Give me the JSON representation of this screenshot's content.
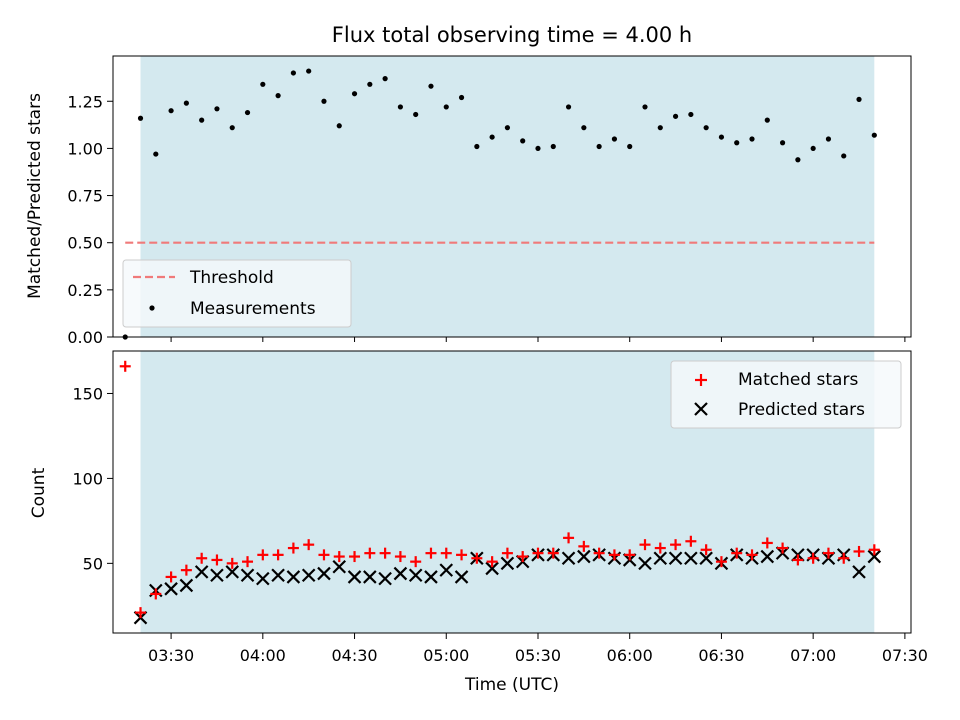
{
  "figure": {
    "title": "Flux total observing time = 4.00 h",
    "xlabel": "Time (UTC)",
    "x_tick_labels": [
      "03:30",
      "04:00",
      "04:30",
      "05:00",
      "05:30",
      "06:00",
      "06:30",
      "07:00",
      "07:30"
    ]
  },
  "colors": {
    "band": "#d4e9ef",
    "band_edge": "#b6dbe3",
    "threshold": "#f07a7a",
    "measurements": "#000000",
    "matched": "#ff0000",
    "predicted": "#000000"
  },
  "chart_data": [
    {
      "type": "scatter",
      "panel": "top",
      "ylabel": "Matched/Predicted stars",
      "xlim": [
        "03:11",
        "07:32"
      ],
      "ylim": [
        0,
        1.49
      ],
      "y_ticks": [
        0.0,
        0.25,
        0.5,
        0.75,
        1.0,
        1.25
      ],
      "y_tick_labels": [
        "0.00",
        "0.25",
        "0.50",
        "0.75",
        "1.00",
        "1.25"
      ],
      "shaded_range": [
        "03:20",
        "07:20"
      ],
      "threshold": {
        "value": 0.5,
        "x_range": [
          "03:15",
          "07:20"
        ]
      },
      "legend": {
        "position": "lower-left",
        "entries": [
          "Threshold",
          "Measurements"
        ]
      },
      "series": [
        {
          "name": "Measurements",
          "x": [
            "03:15",
            "03:20",
            "03:25",
            "03:30",
            "03:35",
            "03:40",
            "03:45",
            "03:50",
            "03:55",
            "04:00",
            "04:05",
            "04:10",
            "04:15",
            "04:20",
            "04:25",
            "04:30",
            "04:35",
            "04:40",
            "04:45",
            "04:50",
            "04:55",
            "05:00",
            "05:05",
            "05:10",
            "05:15",
            "05:20",
            "05:25",
            "05:30",
            "05:35",
            "05:40",
            "05:45",
            "05:50",
            "05:55",
            "06:00",
            "06:05",
            "06:10",
            "06:15",
            "06:20",
            "06:25",
            "06:30",
            "06:35",
            "06:40",
            "06:45",
            "06:50",
            "06:55",
            "07:00",
            "07:05",
            "07:10",
            "07:15",
            "07:20"
          ],
          "values": [
            0.0,
            1.16,
            0.97,
            1.2,
            1.24,
            1.15,
            1.21,
            1.11,
            1.19,
            1.34,
            1.28,
            1.4,
            1.41,
            1.25,
            1.12,
            1.29,
            1.34,
            1.37,
            1.22,
            1.18,
            1.33,
            1.22,
            1.27,
            1.01,
            1.06,
            1.11,
            1.04,
            1.0,
            1.01,
            1.22,
            1.11,
            1.01,
            1.05,
            1.01,
            1.22,
            1.11,
            1.17,
            1.18,
            1.11,
            1.06,
            1.03,
            1.05,
            1.15,
            1.03,
            0.94,
            1.0,
            1.05,
            0.96,
            1.26,
            1.07
          ]
        }
      ]
    },
    {
      "type": "scatter",
      "panel": "bottom",
      "ylabel": "Count",
      "xlim": [
        "03:11",
        "07:32"
      ],
      "ylim": [
        9,
        175
      ],
      "y_ticks": [
        50,
        100,
        150
      ],
      "y_tick_labels": [
        "50",
        "100",
        "150"
      ],
      "shaded_range": [
        "03:20",
        "07:20"
      ],
      "legend": {
        "position": "top-right",
        "entries": [
          "Matched stars",
          "Predicted stars"
        ]
      },
      "x": [
        "03:15",
        "03:20",
        "03:25",
        "03:30",
        "03:35",
        "03:40",
        "03:45",
        "03:50",
        "03:55",
        "04:00",
        "04:05",
        "04:10",
        "04:15",
        "04:20",
        "04:25",
        "04:30",
        "04:35",
        "04:40",
        "04:45",
        "04:50",
        "04:55",
        "05:00",
        "05:05",
        "05:10",
        "05:15",
        "05:20",
        "05:25",
        "05:30",
        "05:35",
        "05:40",
        "05:45",
        "05:50",
        "05:55",
        "06:00",
        "06:05",
        "06:10",
        "06:15",
        "06:20",
        "06:25",
        "06:30",
        "06:35",
        "06:40",
        "06:45",
        "06:50",
        "06:55",
        "07:00",
        "07:05",
        "07:10",
        "07:15",
        "07:20"
      ],
      "series": [
        {
          "name": "Matched stars",
          "marker": "plus",
          "values": [
            166,
            21,
            32,
            42,
            46,
            53,
            52,
            50,
            51,
            55,
            55,
            59,
            61,
            55,
            54,
            54,
            56,
            56,
            54,
            51,
            56,
            56,
            55,
            53,
            51,
            56,
            54,
            56,
            56,
            65,
            60,
            56,
            55,
            55,
            61,
            59,
            61,
            63,
            58,
            51,
            56,
            55,
            62,
            59,
            52,
            53,
            56,
            53,
            57,
            58
          ]
        },
        {
          "name": "Predicted stars",
          "marker": "x",
          "values": null,
          "values_list": [
            null,
            18,
            34,
            35,
            37,
            45,
            43,
            45,
            43,
            41,
            43,
            42,
            43,
            44,
            48,
            42,
            42,
            41,
            44,
            43,
            42,
            46,
            42,
            53,
            47,
            50,
            51,
            55,
            55,
            53,
            54,
            55,
            53,
            52,
            50,
            53,
            53,
            53,
            53,
            50,
            55,
            53,
            54,
            56,
            55,
            55,
            53,
            55,
            45,
            54
          ]
        }
      ]
    }
  ]
}
